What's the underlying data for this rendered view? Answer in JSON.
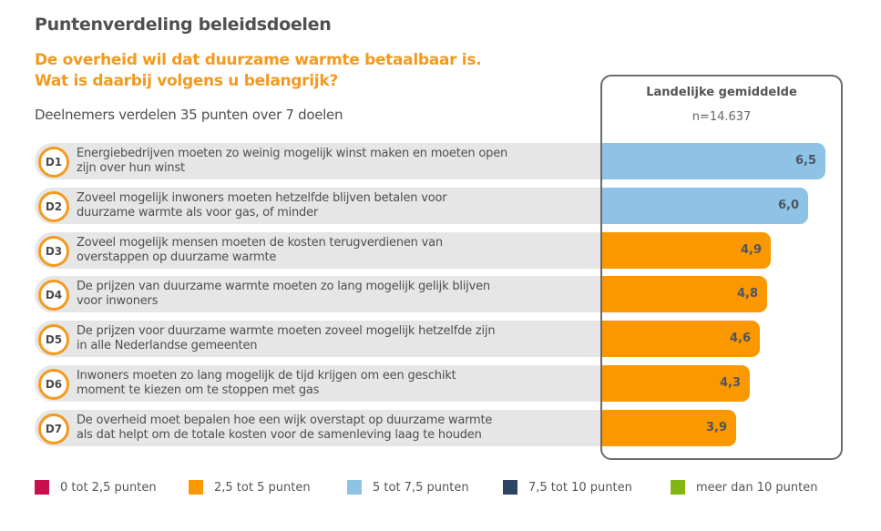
{
  "header": {
    "title": "Puntenverdeling beleidsdoelen",
    "question_line1": "De overheid wil dat duurzame warmte betaalbaar is.",
    "question_line2": "Wat is daarbij volgens u belangrijk?",
    "subtitle": "Deelnemers verdelen 35 punten over 7 doelen"
  },
  "panel": {
    "title": "Landelijke gemiddelde",
    "n": "n=14.637"
  },
  "chart_data": {
    "type": "bar",
    "orientation": "horizontal",
    "title": "Puntenverdeling beleidsdoelen",
    "xlabel": "",
    "ylabel": "",
    "xlim": [
      0,
      7
    ],
    "grid": false,
    "legend_position": "bottom",
    "categories": [
      "D1",
      "D2",
      "D3",
      "D4",
      "D5",
      "D6",
      "D7"
    ],
    "descriptions": [
      [
        "Energiebedrijven moeten zo weinig mogelijk winst maken en moeten open",
        "zijn over hun winst"
      ],
      [
        "Zoveel mogelijk inwoners moeten hetzelfde blijven betalen voor",
        "duurzame warmte als voor gas, of minder"
      ],
      [
        "Zoveel mogelijk mensen moeten de kosten terugverdienen van",
        "overstappen op duurzame warmte"
      ],
      [
        "De prijzen van duurzame warmte moeten zo lang mogelijk gelijk blijven",
        "voor inwoners"
      ],
      [
        "De prijzen voor duurzame warmte moeten zoveel mogelijk hetzelfde zijn",
        "in alle Nederlandse gemeenten"
      ],
      [
        "Inwoners moeten zo lang mogelijk de tijd krijgen om een geschikt",
        "moment te kiezen om te stoppen met gas"
      ],
      [
        "De overheid moet bepalen hoe een wijk overstapt op duurzame warmte",
        "als dat helpt om de totale kosten voor de samenleving laag te houden"
      ]
    ],
    "values": [
      6.5,
      6.0,
      4.9,
      4.8,
      4.6,
      4.3,
      3.9
    ],
    "value_labels": [
      "6,5",
      "6,0",
      "4,9",
      "4,8",
      "4,6",
      "4,3",
      "3,9"
    ],
    "legend": [
      {
        "label": "0 tot 2,5 punten",
        "color": "#c8104e",
        "min": 0,
        "max": 2.5
      },
      {
        "label": "2,5 tot 5 punten",
        "color": "#fb9800",
        "min": 2.5,
        "max": 5
      },
      {
        "label": "5 tot 7,5 punten",
        "color": "#8ec3e6",
        "min": 5,
        "max": 7.5
      },
      {
        "label": "7,5 tot 10 punten",
        "color": "#2d4565",
        "min": 7.5,
        "max": 10
      },
      {
        "label": "meer dan 10 punten",
        "color": "#83b614",
        "min": 10,
        "max": null
      }
    ]
  }
}
